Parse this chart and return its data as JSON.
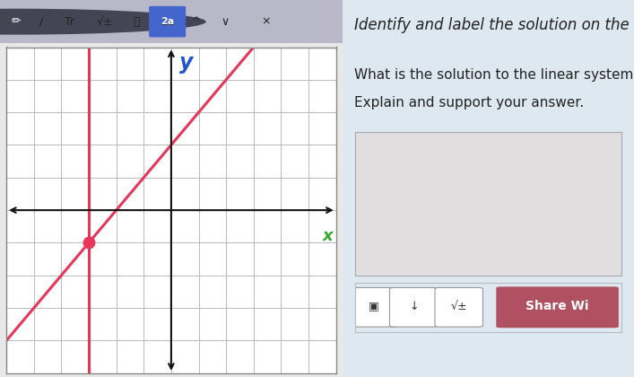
{
  "xlim": [
    -6,
    6
  ],
  "ylim": [
    -5,
    5
  ],
  "grid_color": "#b0b0b0",
  "axis_color": "#111111",
  "line_color": "#e8365a",
  "dot_color": "#e8365a",
  "intersection": [
    -3,
    -1
  ],
  "vertical_line_x": -3,
  "diagonal_slope": 1,
  "diagonal_intercept": 2,
  "ylabel_text": "y",
  "ylabel_color": "#2255cc",
  "xlabel_text": "x",
  "xlabel_color": "#33aa33",
  "graph_bg": "#ffffff",
  "graph_border": "#888888",
  "left_bg": "#e8e8e8",
  "right_bg": "#dde8f0",
  "toolbar_bg": "#b8b8c8",
  "header_line1": "Identify and label the solution on the graph.",
  "header_line1_italic": true,
  "header_line1_size": 12,
  "question_line1": "What is the solution to the linear system?",
  "question_line2": "Explain and support your answer.",
  "question_size": 11,
  "input_box_bg": "#e0dede",
  "bottom_bar_bg": "#dde8f0",
  "btn_bg": "#ffffff",
  "btn_border": "#999999",
  "share_bg": "#b05060",
  "share_text": "Share Wi",
  "figsize": [
    7.07,
    4.2
  ],
  "dpi": 100
}
